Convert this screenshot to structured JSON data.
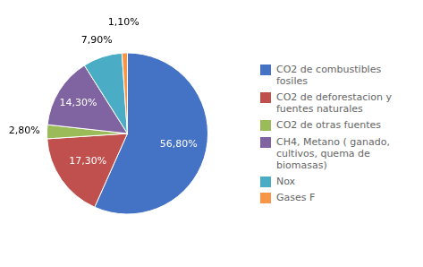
{
  "chart_data": {
    "type": "pie",
    "categories": [
      "CO2 de combustibles\nfosiles",
      "CO2 de deforestacion y\nfuentes naturales",
      "CO2 de otras fuentes",
      "CH4, Metano ( ganado,\ncultivos, quema de\nbiomasas)",
      "Nox",
      "Gases F"
    ],
    "values": [
      56.8,
      17.3,
      2.8,
      14.3,
      7.9,
      1.1
    ],
    "value_labels": [
      "56,80%",
      "17,30%",
      "2,80%",
      "14,30%",
      "7,90%",
      "1,10%"
    ],
    "colors": [
      "#4472C4",
      "#C0504D",
      "#9BBB59",
      "#8064A2",
      "#4BACC6",
      "#F79646"
    ],
    "legend": "right",
    "data_labels": true
  }
}
